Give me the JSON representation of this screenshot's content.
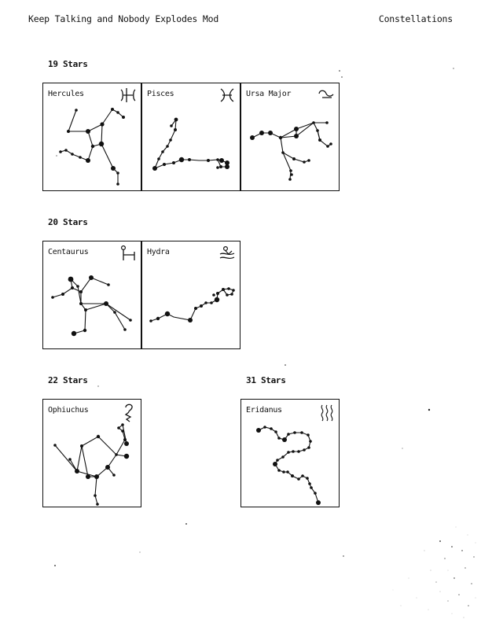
{
  "header": {
    "left_title": "Keep Talking and Nobody Explodes Mod",
    "right_title": "Constellations"
  },
  "groups": [
    {
      "label": "19 Stars",
      "constellations": [
        "Hercules",
        "Pisces",
        "Ursa Major"
      ]
    },
    {
      "label": "20 Stars",
      "constellations": [
        "Centaurus",
        "Hydra"
      ]
    },
    {
      "label": "22 Stars",
      "constellations": [
        "Ophiuchus"
      ]
    },
    {
      "label": "31 Stars",
      "constellations": [
        "Eridanus"
      ]
    }
  ],
  "icons": {
    "Hercules": "hercules-symbol-icon",
    "Pisces": "pisces-symbol-icon",
    "Ursa Major": "ursa-major-symbol-icon",
    "Centaurus": "centaurus-symbol-icon",
    "Hydra": "hydra-symbol-icon",
    "Ophiuchus": "ophiuchus-symbol-icon",
    "Eridanus": "eridanus-symbol-icon"
  },
  "colors": {
    "ink": "#111111",
    "paper": "#ffffff"
  }
}
